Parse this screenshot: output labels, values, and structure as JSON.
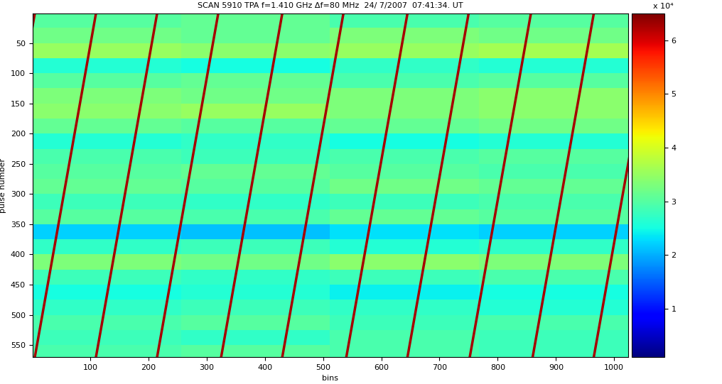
{
  "chart_data": {
    "type": "heatmap",
    "title": "SCAN 5910 TPA f=1.410 GHz Δf=80 MHz  24/ 7/2007  07:41:34. UT",
    "x_label": "bins",
    "y_label": "pulse number",
    "xlim": [
      1,
      1024
    ],
    "ylim": [
      570,
      1
    ],
    "xticks": [
      100,
      200,
      300,
      400,
      500,
      600,
      700,
      800,
      900,
      1000
    ],
    "yticks": [
      50,
      100,
      150,
      200,
      250,
      300,
      350,
      400,
      450,
      500,
      550
    ],
    "col_edges": [
      1,
      256,
      512,
      768,
      1024
    ],
    "row_edges": [
      1,
      25,
      50,
      75,
      100,
      125,
      150,
      175,
      200,
      225,
      250,
      275,
      300,
      325,
      350,
      375,
      400,
      425,
      450,
      475,
      500,
      525,
      550,
      570
    ],
    "cells": [
      [
        30000,
        31000,
        29000,
        30000
      ],
      [
        32000,
        31000,
        33000,
        32000
      ],
      [
        35000,
        34000,
        35000,
        36000
      ],
      [
        26000,
        25000,
        27000,
        26000
      ],
      [
        30000,
        31000,
        29000,
        30000
      ],
      [
        33000,
        32000,
        33000,
        34000
      ],
      [
        34000,
        35000,
        33000,
        34000
      ],
      [
        31000,
        30000,
        31000,
        32000
      ],
      [
        26000,
        27000,
        25000,
        26000
      ],
      [
        29000,
        28000,
        29000,
        30000
      ],
      [
        30000,
        31000,
        30000,
        29000
      ],
      [
        31000,
        30000,
        32000,
        31000
      ],
      [
        28000,
        27000,
        28000,
        29000
      ],
      [
        30000,
        29000,
        31000,
        30000
      ],
      [
        22000,
        21000,
        23000,
        22000
      ],
      [
        27000,
        28000,
        26000,
        27000
      ],
      [
        33000,
        32000,
        34000,
        33000
      ],
      [
        28000,
        27000,
        28000,
        29000
      ],
      [
        25000,
        26000,
        24000,
        25000
      ],
      [
        27000,
        28000,
        27000,
        26000
      ],
      [
        29000,
        30000,
        28000,
        29000
      ],
      [
        28000,
        27000,
        29000,
        28000
      ],
      [
        29000,
        30000,
        29000,
        28000
      ]
    ],
    "colorbar_range": [
      1000,
      65000
    ],
    "colorbar_ticks": [
      {
        "value": 10000,
        "label": "1"
      },
      {
        "value": 20000,
        "label": "2"
      },
      {
        "value": 30000,
        "label": "3"
      },
      {
        "value": 40000,
        "label": "4"
      },
      {
        "value": 50000,
        "label": "5"
      },
      {
        "value": 60000,
        "label": "6"
      }
    ],
    "colorbar_multiplier": "x 10⁴",
    "tracks": [
      {
        "bins": [
          5,
          -100
        ],
        "pulses": [
          1,
          570
        ],
        "color": "#a50000"
      },
      {
        "bins": [
          110,
          5
        ],
        "pulses": [
          1,
          570
        ],
        "color": "#a50000"
      },
      {
        "bins": [
          215,
          110
        ],
        "pulses": [
          1,
          570
        ],
        "color": "#a50000"
      },
      {
        "bins": [
          320,
          215
        ],
        "pulses": [
          1,
          570
        ],
        "color": "#a50000"
      },
      {
        "bins": [
          430,
          325
        ],
        "pulses": [
          1,
          570
        ],
        "color": "#a50000"
      },
      {
        "bins": [
          535,
          430
        ],
        "pulses": [
          1,
          570
        ],
        "color": "#a50000"
      },
      {
        "bins": [
          645,
          540
        ],
        "pulses": [
          1,
          570
        ],
        "color": "#a50000"
      },
      {
        "bins": [
          750,
          645
        ],
        "pulses": [
          1,
          570
        ],
        "color": "#a50000"
      },
      {
        "bins": [
          857,
          752
        ],
        "pulses": [
          1,
          570
        ],
        "color": "#a50000"
      },
      {
        "bins": [
          965,
          860
        ],
        "pulses": [
          1,
          570
        ],
        "color": "#a50000"
      },
      {
        "bins": [
          1070,
          965
        ],
        "pulses": [
          1,
          570
        ],
        "color": "#a50000"
      }
    ]
  }
}
